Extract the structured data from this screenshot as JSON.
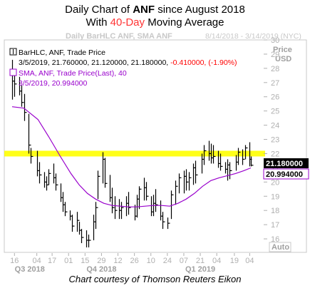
{
  "title": {
    "line1_prefix": "Daily Chart of ",
    "line1_ticker": "ANF",
    "line1_suffix": " since August 2018",
    "line2_prefix": "With ",
    "line2_highlight": "40-Day",
    "line2_suffix": " Moving Average"
  },
  "watermark_left": "Daily BarHLC ANF, SMA ANF",
  "watermark_right": "8/14/2018 - 3/14/2019 (NYC)",
  "caption": "Chart courtesy of Thomson Reuters Eikon",
  "legend": {
    "bar_label": "BarHLC, ANF, Trade Price",
    "bar_values_date": "3/5/2019, 21.760000, 21.120000, 21.180000, ",
    "bar_values_change": "-0.410000, (-1.90%)",
    "sma_label": "SMA, ANF, Trade Price(Last),  40",
    "sma_values": "3/5/2019, 20.994000"
  },
  "axis": {
    "price_label": "Price",
    "currency_label": "USD",
    "auto_label": "Auto",
    "quarters": [
      {
        "label": "Q3 2018",
        "x": "2018-08-29"
      },
      {
        "label": "Q4 2018",
        "x": "2018-10-29"
      },
      {
        "label": "Q1 2019",
        "x": "2019-01-21"
      }
    ]
  },
  "colors": {
    "bars": "#000000",
    "sma": "#9900cc",
    "resistance": "#ffff00",
    "change_text": "#ff0000",
    "price_tag_bg": "#000000",
    "sma_tag_bg": "#ffffff"
  },
  "chart_data": {
    "type": "line",
    "x_type": "date",
    "series": [
      {
        "name": "BarHLC, ANF, Trade Price",
        "style": "hlc-bars",
        "x": [
          "2018-08-14",
          "2018-08-16",
          "2018-08-20",
          "2018-08-22",
          "2018-08-24",
          "2018-08-28",
          "2018-08-30",
          "2018-09-04",
          "2018-09-06",
          "2018-09-10",
          "2018-09-12",
          "2018-09-14",
          "2018-09-18",
          "2018-09-20",
          "2018-09-24",
          "2018-09-26",
          "2018-09-28",
          "2018-10-02",
          "2018-10-04",
          "2018-10-08",
          "2018-10-10",
          "2018-10-12",
          "2018-10-16",
          "2018-10-18",
          "2018-10-22",
          "2018-10-24",
          "2018-10-26",
          "2018-10-30",
          "2018-11-01",
          "2018-11-05",
          "2018-11-07",
          "2018-11-09",
          "2018-11-13",
          "2018-11-15",
          "2018-11-19",
          "2018-11-21",
          "2018-11-26",
          "2018-11-28",
          "2018-11-30",
          "2018-12-04",
          "2018-12-06",
          "2018-12-10",
          "2018-12-12",
          "2018-12-14",
          "2018-12-18",
          "2018-12-20",
          "2018-12-24",
          "2018-12-27",
          "2018-12-31",
          "2019-01-03",
          "2019-01-07",
          "2019-01-09",
          "2019-01-11",
          "2019-01-15",
          "2019-01-17",
          "2019-01-22",
          "2019-01-24",
          "2019-01-28",
          "2019-01-30",
          "2019-02-01",
          "2019-02-05",
          "2019-02-07",
          "2019-02-11",
          "2019-02-13",
          "2019-02-15",
          "2019-02-20",
          "2019-02-22",
          "2019-02-26",
          "2019-02-28",
          "2019-03-04",
          "2019-03-05"
        ],
        "high": [
          28.6,
          27.9,
          27.4,
          26.8,
          26.2,
          24.8,
          22.4,
          22.2,
          21.4,
          20.7,
          20.4,
          20.9,
          21.3,
          20.6,
          19.9,
          19.3,
          18.6,
          18.0,
          17.7,
          17.9,
          17.2,
          16.7,
          16.6,
          16.3,
          17.7,
          18.6,
          20.8,
          22.1,
          21.7,
          20.5,
          19.6,
          19.0,
          18.8,
          18.6,
          19.0,
          19.3,
          18.4,
          19.1,
          19.7,
          20.3,
          20.0,
          19.0,
          19.1,
          19.5,
          18.7,
          17.9,
          17.5,
          19.4,
          20.1,
          20.6,
          20.8,
          20.9,
          20.7,
          21.3,
          21.5,
          22.0,
          22.6,
          22.9,
          22.7,
          22.6,
          22.2,
          22.0,
          21.4,
          21.6,
          21.4,
          21.9,
          22.4,
          22.3,
          22.6,
          22.8,
          21.8
        ],
        "low": [
          25.8,
          26.0,
          26.1,
          25.3,
          24.3,
          22.0,
          21.3,
          20.4,
          19.9,
          19.6,
          19.4,
          19.8,
          19.9,
          19.4,
          18.6,
          17.9,
          17.6,
          17.3,
          16.5,
          16.5,
          16.3,
          15.7,
          15.4,
          15.4,
          15.9,
          16.7,
          18.8,
          19.9,
          19.6,
          18.6,
          17.8,
          17.4,
          17.4,
          17.4,
          17.6,
          17.7,
          17.3,
          17.5,
          18.1,
          18.7,
          18.7,
          17.6,
          17.6,
          17.9,
          17.3,
          16.7,
          16.7,
          17.4,
          18.4,
          19.2,
          19.2,
          19.4,
          19.4,
          19.8,
          19.9,
          20.6,
          21.2,
          21.5,
          21.3,
          21.3,
          21.0,
          20.8,
          20.6,
          20.1,
          20.2,
          20.8,
          21.2,
          21.2,
          21.6,
          21.1,
          21.1
        ],
        "close": [
          27.1,
          26.9,
          26.4,
          25.6,
          24.9,
          22.6,
          21.8,
          20.8,
          20.5,
          20.0,
          19.8,
          20.6,
          20.3,
          19.8,
          18.9,
          18.4,
          17.9,
          17.6,
          16.9,
          17.3,
          16.6,
          16.1,
          15.9,
          15.9,
          17.2,
          18.2,
          20.4,
          21.6,
          19.9,
          18.9,
          18.2,
          18.0,
          18.0,
          18.2,
          18.5,
          18.2,
          17.6,
          18.8,
          19.5,
          19.6,
          19.0,
          17.9,
          18.5,
          18.4,
          17.6,
          17.2,
          17.1,
          19.1,
          19.7,
          20.3,
          20.4,
          20.0,
          20.3,
          21.0,
          20.5,
          21.6,
          22.2,
          22.0,
          21.7,
          21.8,
          21.3,
          21.1,
          20.9,
          21.2,
          20.8,
          21.4,
          22.1,
          21.6,
          22.4,
          21.6,
          21.18
        ]
      },
      {
        "name": "SMA, ANF, Trade Price(Last), 40",
        "style": "line",
        "x": [
          "2018-08-14",
          "2018-08-24",
          "2018-09-05",
          "2018-09-14",
          "2018-09-24",
          "2018-10-03",
          "2018-10-10",
          "2018-10-17",
          "2018-10-24",
          "2018-10-31",
          "2018-11-07",
          "2018-11-14",
          "2018-11-21",
          "2018-11-28",
          "2018-12-05",
          "2018-12-12",
          "2018-12-19",
          "2018-12-26",
          "2019-01-02",
          "2019-01-09",
          "2019-01-16",
          "2019-01-23",
          "2019-01-30",
          "2019-02-06",
          "2019-02-13",
          "2019-02-20",
          "2019-02-27",
          "2019-03-05"
        ],
        "values": [
          25.3,
          25.2,
          24.4,
          23.2,
          21.8,
          20.6,
          19.8,
          19.2,
          18.8,
          18.5,
          18.35,
          18.3,
          18.25,
          18.25,
          18.3,
          18.35,
          18.35,
          18.3,
          18.5,
          18.8,
          19.2,
          19.7,
          20.1,
          20.3,
          20.45,
          20.6,
          20.8,
          20.994
        ]
      }
    ],
    "resistance_level": 22.0,
    "ylim": [
      15,
      30
    ],
    "yticks": [
      16,
      17,
      18,
      19,
      20,
      21,
      22,
      23,
      24,
      25,
      26,
      27,
      28,
      29,
      30
    ],
    "xticks": [
      {
        "label": "16",
        "date": "2018-08-16"
      },
      {
        "label": "04",
        "date": "2018-09-04"
      },
      {
        "label": "17",
        "date": "2018-09-17"
      },
      {
        "label": "01",
        "date": "2018-10-01"
      },
      {
        "label": "15",
        "date": "2018-10-15"
      },
      {
        "label": "29",
        "date": "2018-10-29"
      },
      {
        "label": "12",
        "date": "2018-11-12"
      },
      {
        "label": "26",
        "date": "2018-11-26"
      },
      {
        "label": "10",
        "date": "2018-12-10"
      },
      {
        "label": "24",
        "date": "2018-12-24"
      },
      {
        "label": "07",
        "date": "2019-01-07"
      },
      {
        "label": "21",
        "date": "2019-01-21"
      },
      {
        "label": "04",
        "date": "2019-02-04"
      },
      {
        "label": "19",
        "date": "2019-02-19"
      },
      {
        "label": "04",
        "date": "2019-03-04"
      }
    ],
    "last_price_tag": "21.180000",
    "sma_tag": "20.994000",
    "grid": false,
    "legend_position": "top-left"
  }
}
